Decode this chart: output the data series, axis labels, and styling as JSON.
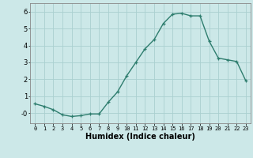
{
  "x": [
    0,
    1,
    2,
    3,
    4,
    5,
    6,
    7,
    8,
    9,
    10,
    11,
    12,
    13,
    14,
    15,
    16,
    17,
    18,
    19,
    20,
    21,
    22,
    23
  ],
  "y": [
    0.55,
    0.4,
    0.2,
    -0.1,
    -0.2,
    -0.15,
    -0.05,
    -0.05,
    0.65,
    1.25,
    2.2,
    3.0,
    3.8,
    4.35,
    5.3,
    5.85,
    5.9,
    5.75,
    5.75,
    4.25,
    3.25,
    3.15,
    3.05,
    1.9
  ],
  "line_color": "#2e7d6e",
  "marker": "+",
  "marker_size": 3,
  "background_color": "#cce8e8",
  "grid_color": "#aad0d0",
  "xlabel": "Humidex (Indice chaleur)",
  "ylabel": "",
  "xlim": [
    -0.5,
    23.5
  ],
  "ylim": [
    -0.6,
    6.5
  ],
  "yticks": [
    0,
    1,
    2,
    3,
    4,
    5,
    6
  ],
  "ytick_labels": [
    "-0",
    "1",
    "2",
    "3",
    "4",
    "5",
    "6"
  ],
  "xticks": [
    0,
    1,
    2,
    3,
    4,
    5,
    6,
    7,
    8,
    9,
    10,
    11,
    12,
    13,
    14,
    15,
    16,
    17,
    18,
    19,
    20,
    21,
    22,
    23
  ],
  "xtick_labels": [
    "0",
    "1",
    "2",
    "3",
    "4",
    "5",
    "6",
    "7",
    "8",
    "9",
    "10",
    "11",
    "12",
    "13",
    "14",
    "15",
    "16",
    "17",
    "18",
    "19",
    "20",
    "21",
    "22",
    "23"
  ],
  "linewidth": 1.0,
  "marker_color": "#2e7d6e",
  "xlabel_fontsize": 7,
  "tick_fontsize": 5,
  "spine_color": "#888888"
}
